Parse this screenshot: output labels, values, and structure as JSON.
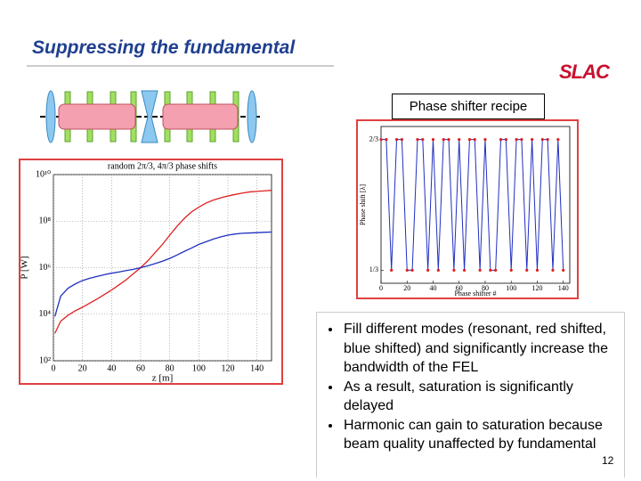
{
  "header": {
    "title": "Suppressing the fundamental",
    "logo": "SLAC"
  },
  "recipe_label": "Phase shifter recipe",
  "chart_data": [
    {
      "type": "line",
      "title": "random 2π/3, 4π/3 phase shifts",
      "x_label": "z [m]",
      "y_label": "P [W]",
      "log_y": true,
      "grid": true,
      "x": [
        1,
        5,
        10,
        15,
        20,
        25,
        30,
        35,
        40,
        45,
        50,
        55,
        60,
        65,
        70,
        75,
        80,
        85,
        90,
        95,
        100,
        105,
        110,
        115,
        120,
        125,
        130,
        135,
        140,
        145,
        150
      ],
      "series": [
        {
          "color": "#e02020",
          "values": [
            1500,
            5000,
            9000,
            14000,
            20000,
            30000,
            45000,
            70000,
            110000,
            180000,
            300000,
            550000,
            1000000,
            2000000,
            4500000,
            10000000,
            25000000,
            60000000,
            130000000,
            250000000,
            400000000,
            600000000,
            800000000,
            1000000000,
            1200000000,
            1400000000,
            1600000000,
            1800000000,
            1900000000,
            2000000000,
            2100000000
          ]
        },
        {
          "color": "#2030c0",
          "values": [
            8000,
            60000,
            130000,
            200000,
            280000,
            350000,
            420000,
            500000,
            580000,
            650000,
            750000,
            850000,
            1000000,
            1200000,
            1500000,
            1900000,
            2500000,
            3500000,
            5000000,
            7000000,
            10000000,
            13000000,
            17000000,
            21000000,
            25000000,
            28000000,
            30000000,
            31000000,
            32000000,
            33000000,
            34000000
          ]
        }
      ],
      "xlim": [
        0,
        150
      ],
      "xticks": [
        0,
        20,
        40,
        60,
        80,
        100,
        120,
        140
      ],
      "ylim": [
        100,
        10000000000
      ],
      "yticks": [
        {
          "value": 100,
          "label": "10²"
        },
        {
          "value": 10000,
          "label": "10⁴"
        },
        {
          "value": 1000000,
          "label": "10⁶"
        },
        {
          "value": 100000000,
          "label": "10⁸"
        },
        {
          "value": 10000000000,
          "label": "10¹⁰"
        }
      ]
    },
    {
      "type": "line",
      "x_label": "Phase shifter #",
      "y_label": "Phase shift [λ]",
      "line_color": "#2030c0",
      "marker_color": "#e02020",
      "x": [
        0,
        4,
        8,
        12,
        16,
        20,
        24,
        28,
        32,
        36,
        40,
        44,
        48,
        52,
        56,
        60,
        64,
        68,
        72,
        76,
        80,
        84,
        88,
        92,
        96,
        100,
        104,
        108,
        112,
        116,
        120,
        124,
        128,
        132,
        136,
        140
      ],
      "series": [
        {
          "values": [
            0.6667,
            0.6667,
            0.3333,
            0.6667,
            0.6667,
            0.3333,
            0.3333,
            0.6667,
            0.6667,
            0.3333,
            0.6667,
            0.3333,
            0.6667,
            0.6667,
            0.3333,
            0.6667,
            0.3333,
            0.6667,
            0.6667,
            0.3333,
            0.6667,
            0.3333,
            0.3333,
            0.6667,
            0.6667,
            0.3333,
            0.6667,
            0.6667,
            0.3333,
            0.6667,
            0.3333,
            0.6667,
            0.6667,
            0.3333,
            0.6667,
            0.3333
          ]
        }
      ],
      "xlim": [
        0,
        145
      ],
      "xticks": [
        0,
        20,
        40,
        60,
        80,
        100,
        120,
        140
      ],
      "ylim": [
        0.3,
        0.7
      ],
      "yticks": [
        {
          "value": 0.3333,
          "label": "1/3"
        },
        {
          "value": 0.6667,
          "label": "2/3"
        }
      ]
    }
  ],
  "bullets": [
    "Fill different modes (resonant, red shifted, blue shifted) and significantly increase the bandwidth of the FEL",
    "As a result, saturation is significantly delayed",
    "Harmonic can gain to saturation because beam quality unaffected by fundamental"
  ],
  "page_number": "12"
}
